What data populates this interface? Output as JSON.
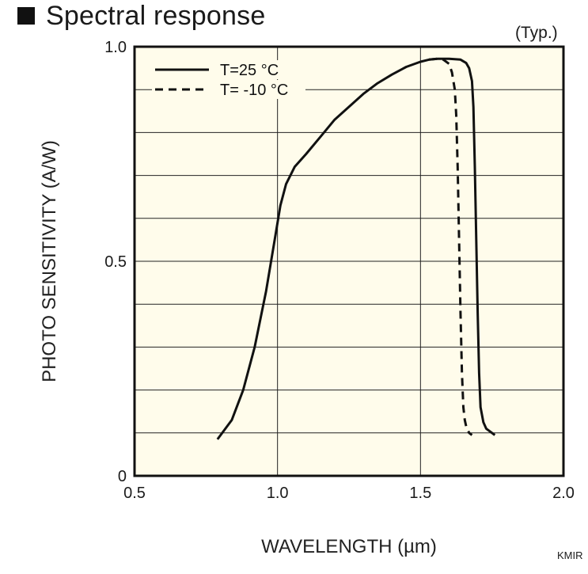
{
  "header": {
    "title": "Spectral response",
    "typ_note": "(Typ.)",
    "code": "KMIR"
  },
  "colors": {
    "plot_background": "#FFFCEB",
    "line": "#111111",
    "grid": "#222222"
  },
  "chart_data": {
    "type": "line",
    "title": "Spectral response",
    "xlabel": "WAVELENGTH (µm)",
    "ylabel": "PHOTO SENSITIVITY (A/W)",
    "xlim": [
      0.5,
      2.0
    ],
    "ylim": [
      0,
      1.0
    ],
    "x_ticks": [
      0.5,
      1.0,
      1.5,
      2.0
    ],
    "x_tick_labels": [
      "0.5",
      "1.0",
      "1.5",
      "2.0"
    ],
    "y_ticks": [
      0,
      0.5,
      1.0
    ],
    "y_tick_labels": [
      "0",
      "0.5",
      "1.0"
    ],
    "x_grid": [
      0.5,
      1.0,
      1.5,
      2.0
    ],
    "y_grid": [
      0.1,
      0.2,
      0.3,
      0.4,
      0.5,
      0.6,
      0.7,
      0.8,
      0.9
    ],
    "grid": true,
    "legend_position": "top-left",
    "series": [
      {
        "name": "T=25 °C",
        "style": "solid",
        "x": [
          0.79,
          0.84,
          0.88,
          0.92,
          0.96,
          0.99,
          1.01,
          1.03,
          1.06,
          1.1,
          1.15,
          1.2,
          1.25,
          1.3,
          1.35,
          1.4,
          1.45,
          1.5,
          1.53,
          1.56,
          1.6,
          1.64,
          1.66,
          1.67,
          1.68,
          1.685,
          1.69,
          1.695,
          1.7,
          1.705,
          1.71,
          1.72,
          1.73,
          1.76
        ],
        "y": [
          0.085,
          0.13,
          0.2,
          0.3,
          0.43,
          0.55,
          0.63,
          0.68,
          0.72,
          0.75,
          0.79,
          0.83,
          0.86,
          0.89,
          0.915,
          0.935,
          0.953,
          0.965,
          0.97,
          0.972,
          0.972,
          0.97,
          0.962,
          0.95,
          0.92,
          0.86,
          0.72,
          0.55,
          0.38,
          0.24,
          0.16,
          0.125,
          0.11,
          0.095
        ]
      },
      {
        "name": "T= -10 °C",
        "style": "dashed",
        "x": [
          1.53,
          1.56,
          1.58,
          1.6,
          1.61,
          1.62,
          1.625,
          1.63,
          1.635,
          1.64,
          1.645,
          1.65,
          1.655,
          1.66,
          1.67,
          1.68
        ],
        "y": [
          0.97,
          0.972,
          0.97,
          0.96,
          0.94,
          0.9,
          0.84,
          0.72,
          0.55,
          0.38,
          0.24,
          0.16,
          0.13,
          0.115,
          0.1,
          0.095
        ]
      }
    ]
  }
}
